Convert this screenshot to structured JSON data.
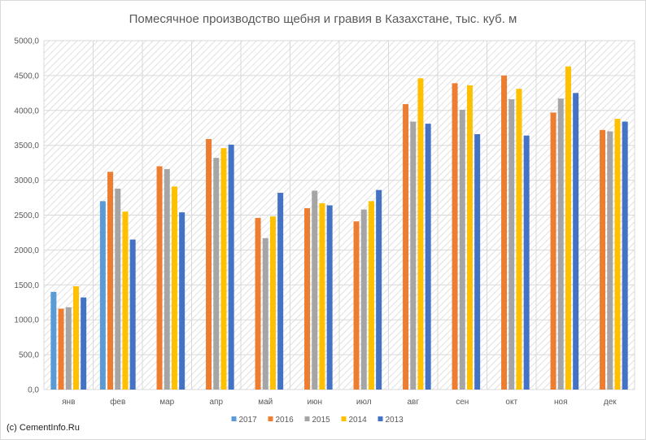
{
  "chart_data": {
    "type": "bar",
    "title": "Помесячное производство щебня и гравия в Казахстане, тыс. куб. м",
    "categories": [
      "янв",
      "фев",
      "мар",
      "апр",
      "май",
      "июн",
      "июл",
      "авг",
      "сен",
      "окт",
      "ноя",
      "дек"
    ],
    "ylim": [
      0,
      5000
    ],
    "y_ticks": [
      "0,0",
      "500,0",
      "1000,0",
      "1500,0",
      "2000,0",
      "2500,0",
      "3000,0",
      "3500,0",
      "4000,0",
      "4500,0",
      "5000,0"
    ],
    "grid": true,
    "legend_position": "bottom",
    "series": [
      {
        "name": "2017",
        "color": "#5b9bd5",
        "values": [
          1400,
          2700,
          null,
          null,
          null,
          null,
          null,
          null,
          null,
          null,
          null,
          null
        ]
      },
      {
        "name": "2016",
        "color": "#ed7d31",
        "values": [
          1160,
          3120,
          3200,
          3590,
          2460,
          2600,
          2410,
          4090,
          4390,
          4500,
          3970,
          3720
        ]
      },
      {
        "name": "2015",
        "color": "#a5a5a5",
        "values": [
          1180,
          2880,
          3160,
          3320,
          2170,
          2850,
          2580,
          3840,
          4010,
          4160,
          4170,
          3700
        ]
      },
      {
        "name": "2014",
        "color": "#ffc000",
        "values": [
          1480,
          2550,
          2910,
          3460,
          2480,
          2670,
          2700,
          4460,
          4360,
          4310,
          4630,
          3880
        ]
      },
      {
        "name": "2013",
        "color": "#4472c4",
        "values": [
          1320,
          2150,
          2540,
          3510,
          2820,
          2640,
          2860,
          3810,
          3660,
          3640,
          4250,
          3840
        ]
      }
    ]
  },
  "credit": "(c) CementInfo.Ru"
}
